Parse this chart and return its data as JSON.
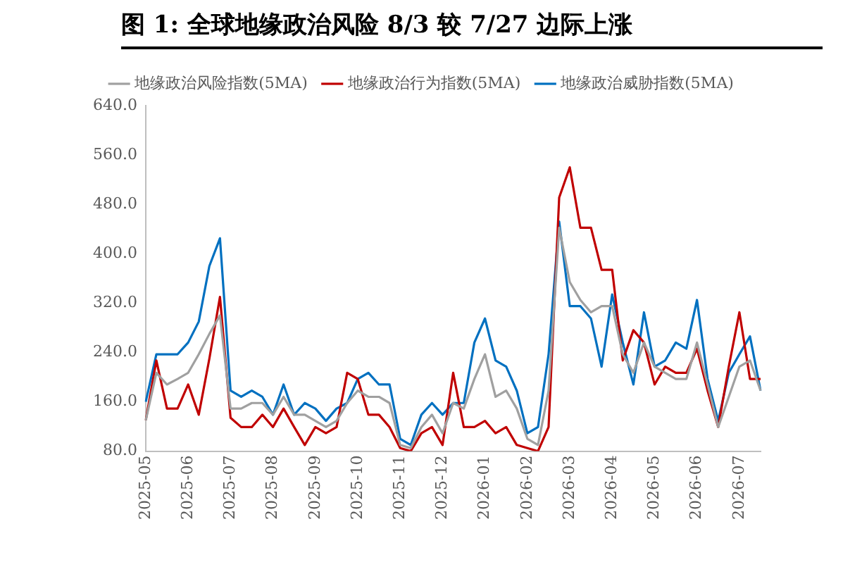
{
  "chart_data": {
    "type": "line",
    "title": "图 1:  全球地缘政治风险 8/3 较 7/27 边际上涨",
    "categories": [
      "2025-05",
      null,
      null,
      null,
      "2025-06",
      null,
      null,
      null,
      "2025-07",
      null,
      null,
      null,
      "2025-08",
      null,
      null,
      null,
      "2025-09",
      null,
      null,
      null,
      "2025-10",
      null,
      null,
      null,
      "2025-11",
      null,
      null,
      null,
      "2025-12",
      null,
      null,
      null,
      "2026-01",
      null,
      null,
      null,
      "2026-02",
      null,
      null,
      null,
      "2026-03",
      null,
      null,
      null,
      "2026-04",
      null,
      null,
      null,
      "2026-05",
      null,
      null,
      null,
      "2026-06",
      null,
      null,
      null,
      "2026-07",
      null,
      null
    ],
    "series": [
      {
        "name": "地缘政治风险指数(5MA)",
        "color": "#a0a0a0",
        "values": [
          130,
          207,
          188,
          197,
          207,
          237,
          270,
          300,
          149,
          149,
          158,
          158,
          139,
          168,
          139,
          139,
          129,
          119,
          129,
          158,
          178,
          168,
          168,
          158,
          90,
          85,
          119,
          139,
          109,
          158,
          149,
          197,
          237,
          168,
          178,
          149,
          100,
          90,
          178,
          442,
          354,
          325,
          305,
          315,
          315,
          237,
          207,
          256,
          217,
          207,
          197,
          197,
          256,
          188,
          119,
          168,
          217,
          227,
          178
        ]
      },
      {
        "name": "地缘政治行为指数(5MA)",
        "color": "#c00000",
        "values": [
          130,
          227,
          149,
          149,
          188,
          139,
          230,
          330,
          134,
          119,
          119,
          139,
          119,
          149,
          119,
          90,
          119,
          109,
          119,
          207,
          197,
          139,
          139,
          119,
          85,
          80,
          109,
          119,
          90,
          207,
          119,
          119,
          129,
          109,
          119,
          90,
          85,
          80,
          119,
          491,
          540,
          442,
          442,
          374,
          374,
          227,
          276,
          256,
          188,
          217,
          207,
          207,
          246,
          178,
          119,
          217,
          305,
          197,
          197
        ]
      },
      {
        "name": "地缘政治威胁指数(5MA)",
        "color": "#0070c0",
        "values": [
          160,
          237,
          237,
          237,
          256,
          290,
          380,
          425,
          178,
          168,
          178,
          168,
          139,
          188,
          139,
          158,
          149,
          129,
          149,
          158,
          197,
          207,
          188,
          188,
          100,
          90,
          139,
          158,
          139,
          158,
          158,
          256,
          295,
          227,
          217,
          178,
          109,
          119,
          237,
          452,
          315,
          315,
          295,
          217,
          334,
          256,
          188,
          305,
          217,
          227,
          256,
          246,
          325,
          197,
          129,
          207,
          237,
          266,
          178
        ]
      }
    ],
    "ylim": [
      80,
      640
    ],
    "yticks": [
      {
        "value": 80,
        "label": "80.0"
      },
      {
        "value": 160,
        "label": "160.0"
      },
      {
        "value": 240,
        "label": "240.0"
      },
      {
        "value": 320,
        "label": "320.0"
      },
      {
        "value": 400,
        "label": "400.0"
      },
      {
        "value": 480,
        "label": "480.0"
      },
      {
        "value": 560,
        "label": "560.0"
      },
      {
        "value": 640,
        "label": "640.0"
      }
    ],
    "grid": false,
    "legend": "top",
    "marker": "none",
    "line_style": "solid"
  }
}
